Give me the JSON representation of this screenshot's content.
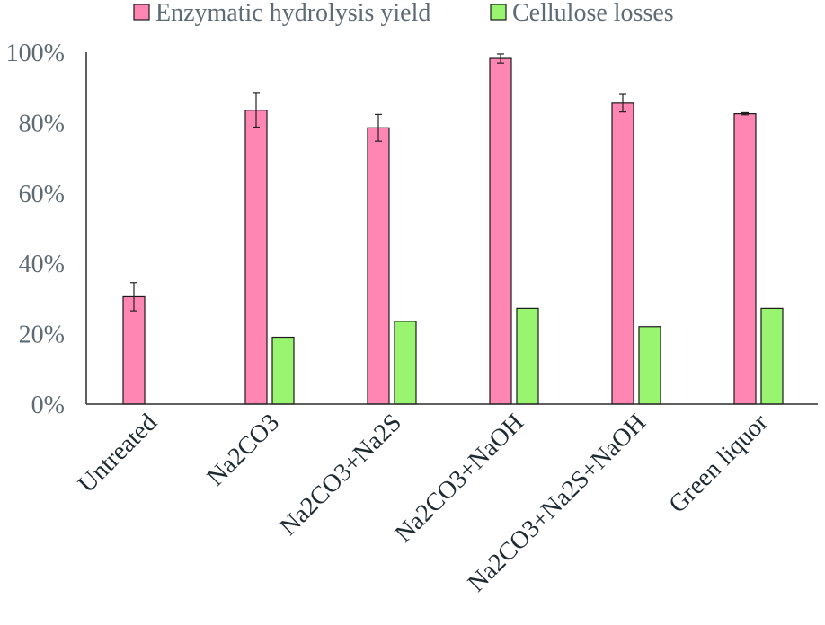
{
  "chart_data": {
    "type": "bar",
    "title": "",
    "xlabel": "",
    "ylabel": "",
    "categories": [
      "Untreated",
      "Na2CO3",
      "Na2CO3+Na2S",
      "Na2CO3+NaOH",
      "Na2CO3+Na2S+NaOH",
      "Green liquor"
    ],
    "series": [
      {
        "name": "Enzymatic hydrolysis yield",
        "color": "#ff85b3",
        "values": [
          30.5,
          83.5,
          78.5,
          98.2,
          85.5,
          82.5
        ],
        "error": [
          4.0,
          4.8,
          3.8,
          1.3,
          2.5,
          0.3
        ]
      },
      {
        "name": "Cellulose losses",
        "color": "#99f570",
        "values": [
          null,
          19.0,
          23.5,
          27.2,
          22.0,
          27.2
        ],
        "error": [
          null,
          null,
          null,
          null,
          null,
          null
        ]
      }
    ],
    "yticks": [
      "0%",
      "20%",
      "40%",
      "60%",
      "80%",
      "100%"
    ],
    "ylim": [
      0,
      100
    ],
    "legend": "top-center",
    "grid": false
  }
}
